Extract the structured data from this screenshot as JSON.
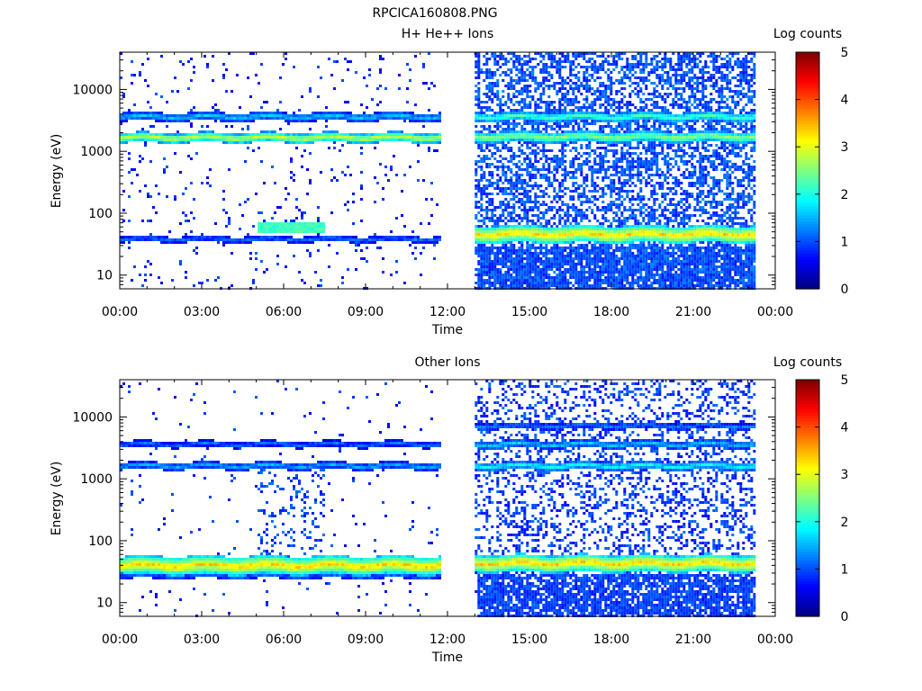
{
  "figure_title": "RPCICA160808.PNG",
  "colors": {
    "background": "#ffffff",
    "axis": "#000000",
    "colormap": [
      "#00007f",
      "#0000ff",
      "#007fff",
      "#00ffff",
      "#7fff7f",
      "#ffff00",
      "#ff7f00",
      "#ff0000",
      "#7f0000"
    ]
  },
  "chart_data": [
    {
      "type": "heatmap",
      "title": "H+ He++ Ions",
      "xlabel": "Time",
      "ylabel": "Energy (eV)",
      "y_scale": "log",
      "xlim": [
        "00:00",
        "24:00"
      ],
      "ylim": [
        6,
        40000
      ],
      "x_tick_labels": [
        "00:00",
        "03:00",
        "06:00",
        "09:00",
        "12:00",
        "15:00",
        "18:00",
        "21:00",
        "00:00"
      ],
      "y_tick_labels": [
        "10",
        "100",
        "1000",
        "10000"
      ],
      "colorbar_label": "Log counts",
      "colorbar_range": [
        0,
        5
      ],
      "colorbar_tick_labels": [
        "0",
        "1",
        "2",
        "3",
        "4",
        "5"
      ],
      "data_gaps": [
        [
          "11:45",
          "13:00"
        ],
        [
          "23:15",
          "24:00"
        ]
      ],
      "segments": [
        {
          "start": "00:00",
          "end": "11:45",
          "background": {
            "density": 0.05,
            "level": 0.8
          },
          "bands": [
            {
              "energy_eV": 3800,
              "width": 0.07,
              "level": 1.6
            },
            {
              "energy_eV": 1750,
              "width": 0.08,
              "level": 2.9
            },
            {
              "energy_eV": 40,
              "width": 0.05,
              "level": 1.2
            }
          ],
          "features": [
            {
              "from": "05:00",
              "to": "07:30",
              "energy_eV": 60,
              "level": 2.2
            }
          ]
        },
        {
          "start": "13:00",
          "end": "23:15",
          "background": {
            "density": 0.55,
            "level": 1.0
          },
          "bands": [
            {
              "energy_eV": 3800,
              "width": 0.08,
              "level": 2.2
            },
            {
              "energy_eV": 1800,
              "width": 0.09,
              "level": 2.6
            },
            {
              "energy_eV": 48,
              "width": 0.14,
              "level": 3.4
            }
          ],
          "features": [
            {
              "from": "13:00",
              "to": "23:15",
              "energy_eV": 8,
              "level": 0.9,
              "note": "low-energy stripes"
            }
          ]
        }
      ]
    },
    {
      "type": "heatmap",
      "title": "Other Ions",
      "xlabel": "Time",
      "ylabel": "Energy (eV)",
      "y_scale": "log",
      "xlim": [
        "00:00",
        "24:00"
      ],
      "ylim": [
        6,
        40000
      ],
      "x_tick_labels": [
        "00:00",
        "03:00",
        "06:00",
        "09:00",
        "12:00",
        "15:00",
        "18:00",
        "21:00",
        "00:00"
      ],
      "y_tick_labels": [
        "10",
        "100",
        "1000",
        "10000"
      ],
      "colorbar_label": "Log counts",
      "colorbar_range": [
        0,
        5
      ],
      "colorbar_tick_labels": [
        "0",
        "1",
        "2",
        "3",
        "4",
        "5"
      ],
      "data_gaps": [
        [
          "11:45",
          "13:00"
        ],
        [
          "23:15",
          "24:00"
        ]
      ],
      "segments": [
        {
          "start": "00:00",
          "end": "11:45",
          "background": {
            "density": 0.02,
            "level": 0.8
          },
          "bands": [
            {
              "energy_eV": 3800,
              "width": 0.05,
              "level": 1.2
            },
            {
              "energy_eV": 1700,
              "width": 0.06,
              "level": 1.5
            },
            {
              "energy_eV": 42,
              "width": 0.15,
              "level": 3.4
            },
            {
              "energy_eV": 28,
              "width": 0.04,
              "level": 1.2
            }
          ],
          "features": [
            {
              "from": "05:00",
              "to": "07:30",
              "energy_eV": 300,
              "level": 1.0,
              "note": "vertical streaks"
            }
          ]
        },
        {
          "start": "13:00",
          "end": "23:15",
          "background": {
            "density": 0.3,
            "level": 0.9
          },
          "bands": [
            {
              "energy_eV": 7500,
              "width": 0.05,
              "level": 1.2
            },
            {
              "energy_eV": 3800,
              "width": 0.06,
              "level": 1.6
            },
            {
              "energy_eV": 1700,
              "width": 0.07,
              "level": 1.9
            },
            {
              "energy_eV": 45,
              "width": 0.14,
              "level": 3.4
            }
          ],
          "features": [
            {
              "from": "13:00",
              "to": "23:15",
              "energy_eV": 8,
              "level": 0.9,
              "note": "low-energy stripes"
            }
          ]
        }
      ]
    }
  ]
}
